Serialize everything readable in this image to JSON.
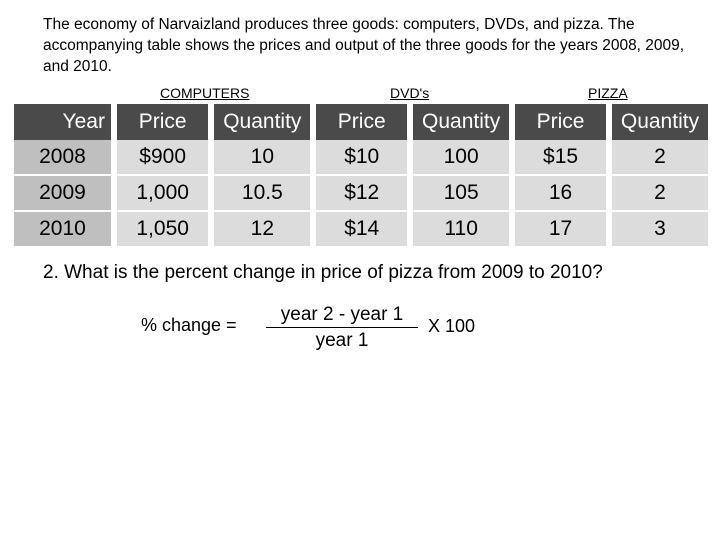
{
  "intro_text": "The economy of Narvaizland produces three goods: computers, DVDs, and pizza. The accompanying table shows the prices and output of the three goods for the years 2008, 2009, and 2010.",
  "group_labels": [
    "COMPUTERS",
    "DVD's",
    "PIZZA"
  ],
  "table": {
    "headers": [
      "Year",
      "Price",
      "Quantity",
      "Price",
      "Quantity",
      "Price",
      "Quantity"
    ],
    "rows": [
      [
        "2008",
        "$900",
        "10",
        "$10",
        "100",
        "$15",
        "2"
      ],
      [
        "2009",
        "1,000",
        "10.5",
        "$12",
        "105",
        "16",
        "2"
      ],
      [
        "2010",
        "1,050",
        "12",
        "$14",
        "110",
        "17",
        "3"
      ]
    ]
  },
  "question": "2.  What is the percent change in price of pizza from 2009 to 2010?",
  "formula": {
    "label": "% change =",
    "numerator": "year 2  -  year 1",
    "denominator": "year 1",
    "multiplier": "X  100"
  }
}
